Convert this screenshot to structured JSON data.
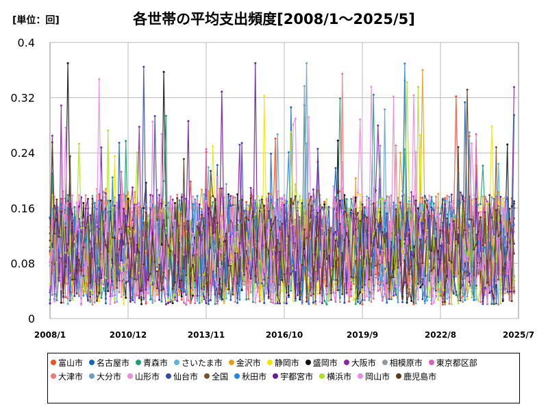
{
  "header": {
    "unit": "[単位：回]",
    "title": "各世帯の平均支出頻度[2008/1～2025/5]"
  },
  "chart_data": {
    "type": "line",
    "title": "各世帯の平均支出頻度[2008/1～2025/5]",
    "unit_label": "[単位：回]",
    "ylim": [
      0,
      0.4
    ],
    "y_ticks": [
      0,
      0.08,
      0.16,
      0.24,
      0.32,
      0.4
    ],
    "y_tick_labels": [
      "0",
      "0.08",
      "0.16",
      "0.24",
      "0.32",
      "0.4"
    ],
    "x_tick_labels": [
      "2008/1",
      "2010/12",
      "2013/11",
      "2016/10",
      "2019/9",
      "2022/8",
      "2025/7"
    ],
    "x_tick_months": [
      0,
      35,
      70,
      105,
      140,
      175,
      210
    ],
    "x_range_months": [
      0,
      210
    ],
    "n_points": 209,
    "grid": true,
    "legend_position": "bottom",
    "series": [
      {
        "name": "富山市",
        "color": "#f4511e",
        "seed": 11,
        "base": 0.1,
        "spread": 0.08
      },
      {
        "name": "名古屋市",
        "color": "#1565c0",
        "seed": 23,
        "base": 0.09,
        "spread": 0.07
      },
      {
        "name": "青森市",
        "color": "#1a9e72",
        "seed": 37,
        "base": 0.1,
        "spread": 0.08
      },
      {
        "name": "さいたま市",
        "color": "#5ab4e5",
        "seed": 41,
        "base": 0.1,
        "spread": 0.08
      },
      {
        "name": "金沢市",
        "color": "#e89e10",
        "seed": 53,
        "base": 0.11,
        "spread": 0.08
      },
      {
        "name": "静岡市",
        "color": "#f5e400",
        "seed": 67,
        "base": 0.1,
        "spread": 0.08
      },
      {
        "name": "盛岡市",
        "color": "#111111",
        "seed": 71,
        "base": 0.1,
        "spread": 0.08
      },
      {
        "name": "大阪市",
        "color": "#8e24aa",
        "seed": 83,
        "base": 0.11,
        "spread": 0.08
      },
      {
        "name": "相模原市",
        "color": "#8f99a3",
        "seed": 97,
        "base": 0.1,
        "spread": 0.08
      },
      {
        "name": "東京都区部",
        "color": "#e05fb7",
        "seed": 101,
        "base": 0.09,
        "spread": 0.07
      },
      {
        "name": "大津市",
        "color": "#f07878",
        "seed": 113,
        "base": 0.1,
        "spread": 0.08
      },
      {
        "name": "大分市",
        "color": "#6b9ec8",
        "seed": 127,
        "base": 0.1,
        "spread": 0.08
      },
      {
        "name": "山形市",
        "color": "#f08ad6",
        "seed": 131,
        "base": 0.11,
        "spread": 0.08
      },
      {
        "name": "仙台市",
        "color": "#3949ab",
        "seed": 149,
        "base": 0.1,
        "spread": 0.08
      },
      {
        "name": "全国",
        "color": "#7a5230",
        "seed": 151,
        "base": 0.1,
        "spread": 0.05
      },
      {
        "name": "秋田市",
        "color": "#1e88e5",
        "seed": 163,
        "base": 0.1,
        "spread": 0.08
      },
      {
        "name": "宇都宮市",
        "color": "#6a1b9a",
        "seed": 173,
        "base": 0.1,
        "spread": 0.08
      },
      {
        "name": "横浜市",
        "color": "#aee02a",
        "seed": 181,
        "base": 0.1,
        "spread": 0.08
      },
      {
        "name": "岡山市",
        "color": "#ee88ee",
        "seed": 191,
        "base": 0.1,
        "spread": 0.08
      },
      {
        "name": "鹿児島市",
        "color": "#5d3a1a",
        "seed": 199,
        "base": 0.1,
        "spread": 0.08
      }
    ]
  }
}
